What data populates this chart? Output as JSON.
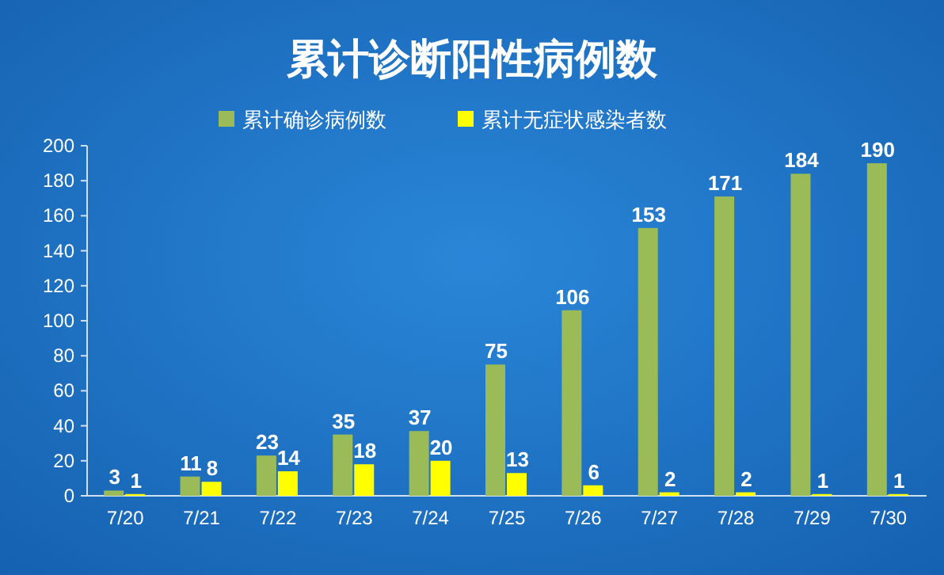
{
  "chart_data": {
    "type": "bar",
    "title": "累计诊断阳性病例数",
    "categories": [
      "7/20",
      "7/21",
      "7/22",
      "7/23",
      "7/24",
      "7/25",
      "7/26",
      "7/27",
      "7/28",
      "7/29",
      "7/30"
    ],
    "series": [
      {
        "name": "累计确诊病例数",
        "color": "#9bbb59",
        "values": [
          3,
          11,
          23,
          35,
          37,
          75,
          106,
          153,
          171,
          184,
          190
        ]
      },
      {
        "name": "累计无症状感染者数",
        "color": "#ffff00",
        "values": [
          1,
          8,
          14,
          18,
          20,
          13,
          6,
          2,
          2,
          1,
          1
        ]
      }
    ],
    "ylim": [
      0,
      200
    ],
    "yticks": [
      0,
      20,
      40,
      60,
      80,
      100,
      120,
      140,
      160,
      180,
      200
    ],
    "data_labels": true,
    "legend": "top"
  }
}
